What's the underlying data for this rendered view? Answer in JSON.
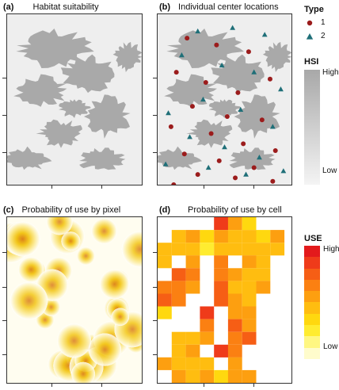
{
  "panels": [
    {
      "letter": "(a)",
      "title": "Habitat suitability"
    },
    {
      "letter": "(b)",
      "title": "Individual center locations"
    },
    {
      "letter": "(c)",
      "title": "Probability of use by pixel"
    },
    {
      "letter": "(d)",
      "title": "Probability of use by cell"
    }
  ],
  "type_legend": {
    "title": "Type",
    "items": [
      {
        "label": "1",
        "shape": "circle",
        "color": "#9b1c1c"
      },
      {
        "label": "2",
        "shape": "triangle",
        "color": "#1f6f78"
      }
    ]
  },
  "hsi_legend": {
    "title": "HSI",
    "high": "High",
    "low": "Low",
    "colors": [
      "#a8a8a8",
      "#f4f4f4"
    ]
  },
  "use_legend": {
    "title": "USE",
    "high": "High",
    "low": "Low",
    "colors": [
      "#e31a1c",
      "#ef3b1a",
      "#f65e15",
      "#fb8012",
      "#fd9f10",
      "#ffbd10",
      "#ffd80f",
      "#ffec30",
      "#fff782",
      "#fffccc"
    ]
  },
  "colors": {
    "habitat": "#a9a9a9",
    "background": "#eeeeee",
    "frame": "#333333"
  },
  "chart_data": [
    {
      "type": "heatmap",
      "panel": "a",
      "title": "Habitat suitability",
      "description_values": "continuous habitat suitability index raster"
    },
    {
      "type": "scatter",
      "panel": "b",
      "title": "Individual center locations",
      "series": [
        {
          "name": "1",
          "points": [
            [
              22,
              14
            ],
            [
              44,
              18
            ],
            [
              68,
              22
            ],
            [
              14,
              34
            ],
            [
              36,
              40
            ],
            [
              60,
              46
            ],
            [
              84,
              38
            ],
            [
              26,
              54
            ],
            [
              52,
              60
            ],
            [
              78,
              62
            ],
            [
              10,
              66
            ],
            [
              40,
              70
            ],
            [
              64,
              76
            ],
            [
              88,
              80
            ],
            [
              20,
              82
            ],
            [
              46,
              86
            ],
            [
              72,
              90
            ],
            [
              30,
              94
            ],
            [
              58,
              96
            ],
            [
              86,
              98
            ],
            [
              12,
              100
            ]
          ]
        },
        {
          "name": "2",
          "points": [
            [
              30,
              10
            ],
            [
              56,
              8
            ],
            [
              80,
              12
            ],
            [
              18,
              24
            ],
            [
              48,
              30
            ],
            [
              72,
              34
            ],
            [
              92,
              44
            ],
            [
              34,
              50
            ],
            [
              62,
              56
            ],
            [
              8,
              58
            ],
            [
              86,
              66
            ],
            [
              24,
              72
            ],
            [
              50,
              78
            ],
            [
              76,
              84
            ],
            [
              6,
              88
            ],
            [
              38,
              90
            ],
            [
              66,
              94
            ],
            [
              94,
              92
            ]
          ]
        }
      ]
    },
    {
      "type": "heatmap",
      "panel": "c",
      "title": "Probability of use by pixel",
      "description_values": "continuous probability of use raster"
    },
    {
      "type": "heatmap",
      "panel": "d",
      "title": "Probability of use by cell",
      "grid_rows": 13,
      "grid_cols": 9,
      "values": [
        [
          null,
          null,
          null,
          null,
          0.9,
          0.6,
          0.3,
          null,
          null
        ],
        [
          null,
          0.4,
          0.6,
          0.3,
          0.6,
          0.5,
          0.4,
          0.3,
          0.6
        ],
        [
          0.5,
          0.5,
          0.4,
          0.2,
          0.4,
          0.5,
          0.5,
          0.5,
          0.5
        ],
        [
          0.5,
          null,
          0.6,
          null,
          0.7,
          null,
          0.6,
          0.5,
          null
        ],
        [
          null,
          0.8,
          0.7,
          null,
          0.7,
          0.6,
          0.5,
          0.5,
          null
        ],
        [
          0.7,
          0.7,
          0.6,
          null,
          0.8,
          0.5,
          0.5,
          0.6,
          null
        ],
        [
          0.8,
          0.7,
          null,
          null,
          0.8,
          0.6,
          0.5,
          null,
          null
        ],
        [
          0.3,
          null,
          null,
          0.9,
          null,
          0.6,
          0.6,
          null,
          null
        ],
        [
          null,
          null,
          null,
          0.7,
          null,
          0.8,
          0.6,
          null,
          null
        ],
        [
          null,
          0.5,
          0.4,
          0.6,
          null,
          0.7,
          0.8,
          null,
          null
        ],
        [
          null,
          0.4,
          0.6,
          null,
          0.9,
          0.7,
          null,
          null,
          null
        ],
        [
          0.6,
          0.5,
          0.5,
          0.4,
          null,
          0.6,
          null,
          null,
          null
        ],
        [
          null,
          0.6,
          0.5,
          0.6,
          0.3,
          0.6,
          0.6,
          null,
          null
        ]
      ]
    }
  ]
}
